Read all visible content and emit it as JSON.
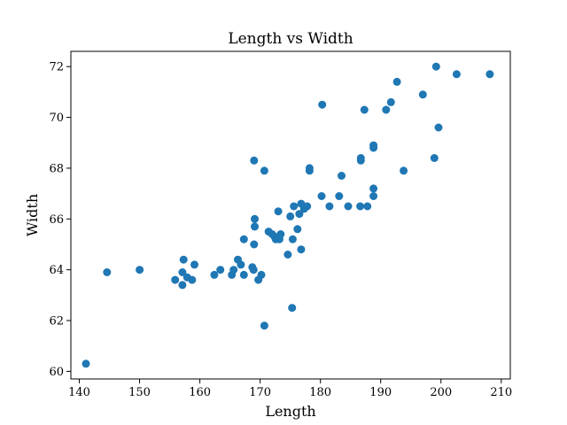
{
  "chart_data": {
    "type": "scatter",
    "title": "Length vs Width",
    "xlabel": "Length",
    "ylabel": "Width",
    "xlim": [
      138.6,
      211.5
    ],
    "ylim": [
      59.7,
      72.6
    ],
    "xticks": [
      140,
      150,
      160,
      170,
      180,
      190,
      200,
      210
    ],
    "yticks": [
      60,
      62,
      64,
      66,
      68,
      70,
      72
    ],
    "grid": false,
    "marker_color": "#1f77b4",
    "series": [
      {
        "points": [
          [
            141.1,
            60.3
          ],
          [
            144.6,
            63.9
          ],
          [
            150.0,
            64.0
          ],
          [
            155.9,
            63.6
          ],
          [
            157.1,
            63.4
          ],
          [
            157.1,
            63.9
          ],
          [
            157.3,
            64.4
          ],
          [
            157.9,
            63.7
          ],
          [
            158.7,
            63.6
          ],
          [
            159.1,
            64.2
          ],
          [
            162.4,
            63.8
          ],
          [
            163.4,
            64.0
          ],
          [
            165.3,
            63.8
          ],
          [
            165.6,
            64.0
          ],
          [
            166.3,
            64.4
          ],
          [
            166.8,
            64.2
          ],
          [
            167.3,
            63.8
          ],
          [
            167.3,
            65.2
          ],
          [
            168.7,
            64.1
          ],
          [
            168.9,
            64.0
          ],
          [
            169.0,
            68.3
          ],
          [
            169.0,
            65.0
          ],
          [
            169.1,
            66.0
          ],
          [
            169.1,
            65.7
          ],
          [
            169.7,
            63.6
          ],
          [
            170.2,
            63.8
          ],
          [
            170.7,
            61.8
          ],
          [
            170.7,
            67.9
          ],
          [
            171.4,
            65.5
          ],
          [
            172.0,
            65.4
          ],
          [
            172.4,
            65.3
          ],
          [
            172.6,
            65.2
          ],
          [
            173.0,
            66.3
          ],
          [
            173.2,
            65.2
          ],
          [
            173.4,
            65.4
          ],
          [
            174.6,
            64.6
          ],
          [
            175.0,
            66.1
          ],
          [
            175.3,
            62.5
          ],
          [
            175.4,
            65.2
          ],
          [
            175.6,
            66.5
          ],
          [
            176.2,
            65.6
          ],
          [
            176.5,
            66.2
          ],
          [
            176.8,
            64.8
          ],
          [
            176.8,
            66.6
          ],
          [
            177.3,
            66.4
          ],
          [
            177.8,
            66.5
          ],
          [
            178.2,
            67.9
          ],
          [
            178.2,
            68.0
          ],
          [
            180.2,
            66.9
          ],
          [
            180.3,
            70.5
          ],
          [
            181.5,
            66.5
          ],
          [
            183.1,
            66.9
          ],
          [
            183.5,
            67.7
          ],
          [
            184.6,
            66.5
          ],
          [
            186.6,
            66.5
          ],
          [
            186.7,
            68.3
          ],
          [
            186.7,
            68.4
          ],
          [
            187.3,
            70.3
          ],
          [
            187.8,
            66.5
          ],
          [
            188.8,
            67.2
          ],
          [
            188.8,
            68.8
          ],
          [
            188.8,
            68.9
          ],
          [
            188.8,
            66.9
          ],
          [
            190.9,
            70.3
          ],
          [
            191.7,
            70.6
          ],
          [
            192.7,
            71.4
          ],
          [
            193.8,
            67.9
          ],
          [
            197.0,
            70.9
          ],
          [
            198.9,
            68.4
          ],
          [
            199.2,
            72.0
          ],
          [
            199.6,
            69.6
          ],
          [
            202.6,
            71.7
          ],
          [
            208.1,
            71.7
          ]
        ]
      }
    ]
  }
}
